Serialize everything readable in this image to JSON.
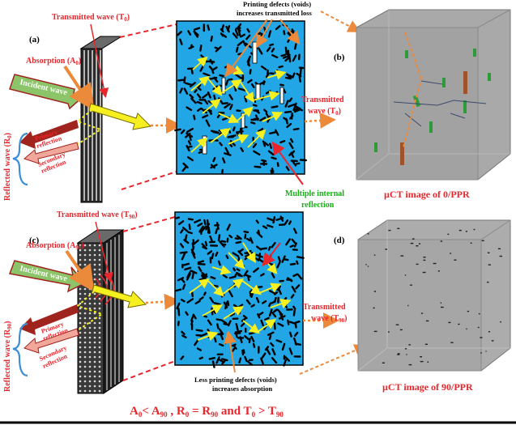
{
  "panels": {
    "a": "(a)",
    "b": "(b)",
    "c": "(c)",
    "d": "(d)"
  },
  "labels": {
    "transmitted_wave": "Transmitted wave (T",
    "t0_sub": "0",
    "t90_sub": "90",
    "absorption": "Absorption (A",
    "a0_sub": "0",
    "a90_sub": "90",
    "incident_wave": "Incident wave",
    "reflected_wave": "Reflected wave (R",
    "r0_sub": "0",
    "r90_sub": "90",
    "close_paren": ")",
    "primary": "Primary",
    "reflection": "reflection",
    "secondary": "Secondary",
    "transmitted": "Transmitted",
    "wave_t": "wave (T",
    "printing_defects_l1": "Printing defects (voids)",
    "printing_defects_l2": "increases transmitted loss",
    "multiple_l1": "Multiple internal",
    "multiple_l2": "reflection",
    "less_defects_l1": "Less printing defects (voids)",
    "less_defects_l2": "increases absorption",
    "uct_b": "µCT image of 0/PPR",
    "uct_d": "µCT image of 90/PPR"
  },
  "equation": {
    "a": "A",
    "s0": "0",
    "lt": "< A",
    "s90": "90",
    "rpart": " , R",
    "eq": " = R",
    "and": " and T",
    "gt": " > T"
  },
  "colors": {
    "red": "#e8262c",
    "blue_panel": "#22a6e6",
    "green_text": "#16b016",
    "orange": "#ec8a3c",
    "yellow": "#f6f021",
    "dark_red": "#a0241e",
    "incident_green": "#8cc46a",
    "ct_gray": "#a6a6a6"
  }
}
